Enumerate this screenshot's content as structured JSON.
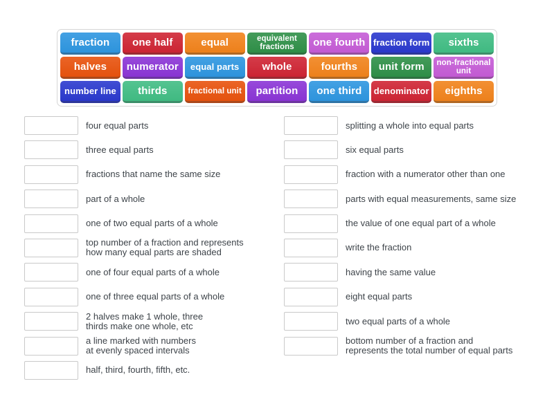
{
  "palette": {
    "blue": "#2e96e0",
    "red": "#cf2534",
    "orange": "#f1831c",
    "dark_green": "#2f9048",
    "orchid": "#c55cd6",
    "royal_blue": "#2b39ce",
    "emerald": "#41bd84",
    "vermilion": "#e8530e",
    "purple": "#8b35d6"
  },
  "word_bank": {
    "tiles": [
      {
        "label": "fraction",
        "color": "blue"
      },
      {
        "label": "one half",
        "color": "red"
      },
      {
        "label": "equal",
        "color": "orange"
      },
      {
        "label": "equivalent fractions",
        "color": "dark_green"
      },
      {
        "label": "one fourth",
        "color": "orchid"
      },
      {
        "label": "fraction form",
        "color": "royal_blue"
      },
      {
        "label": "sixths",
        "color": "emerald"
      },
      {
        "label": "halves",
        "color": "vermilion"
      },
      {
        "label": "numerator",
        "color": "purple"
      },
      {
        "label": "equal parts",
        "color": "blue"
      },
      {
        "label": "whole",
        "color": "red"
      },
      {
        "label": "fourths",
        "color": "orange"
      },
      {
        "label": "unit form",
        "color": "dark_green"
      },
      {
        "label": "non-fractional unit",
        "color": "orchid"
      },
      {
        "label": "number line",
        "color": "royal_blue"
      },
      {
        "label": "thirds",
        "color": "emerald"
      },
      {
        "label": "fractional unit",
        "color": "vermilion"
      },
      {
        "label": "partition",
        "color": "purple"
      },
      {
        "label": "one third",
        "color": "blue"
      },
      {
        "label": "denominator",
        "color": "red"
      },
      {
        "label": "eighths",
        "color": "orange"
      }
    ]
  },
  "match": {
    "left": [
      "four equal parts",
      "three equal parts",
      "fractions that name the same size",
      "part of a whole",
      "one of two equal parts of a whole",
      "top number of a fraction and represents\nhow many equal parts are shaded",
      "one of four equal parts of a whole",
      "one of three equal parts of a whole",
      "2 halves make 1 whole, three\nthirds make one whole, etc",
      "a line marked with numbers\nat evenly spaced intervals",
      "half, third, fourth, fifth, etc."
    ],
    "right": [
      "splitting a whole into equal parts",
      "six equal parts",
      "fraction with a numerator other than one",
      "parts with equal measurements, same size",
      "the value of one equal part of a whole",
      "write the fraction",
      "having the same value",
      "eight equal parts",
      "two equal parts of a whole",
      "bottom number of a fraction and\nrepresents the total number of equal parts"
    ]
  }
}
